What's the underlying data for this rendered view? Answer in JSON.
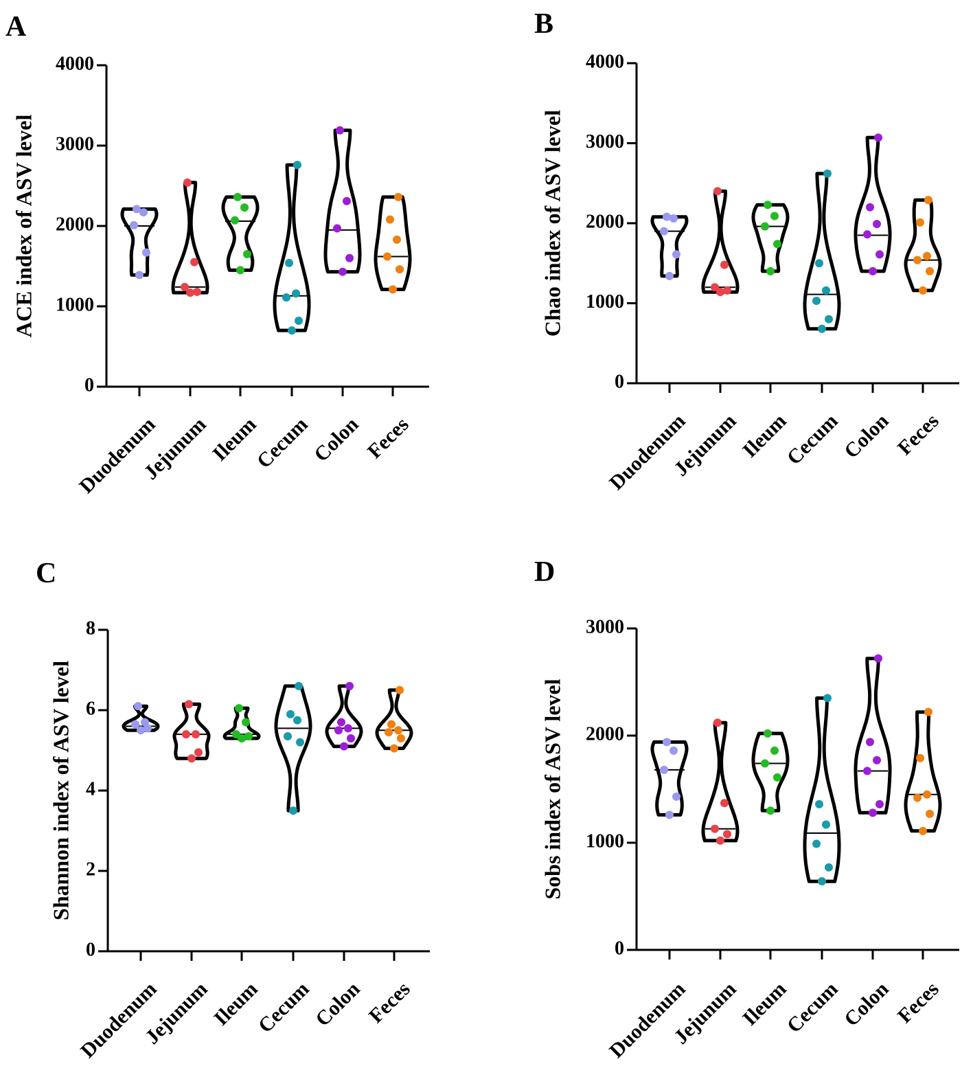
{
  "chart_data": [
    {
      "panel": "A",
      "type": "violin",
      "ylabel": "ACE index of ASV level",
      "ylim": [
        0,
        4000
      ],
      "yticks": [
        0,
        1000,
        2000,
        3000,
        4000
      ],
      "categories": [
        "Duodenum",
        "Jejunum",
        "Ileum",
        "Cecum",
        "Colon",
        "Feces"
      ],
      "series": [
        {
          "name": "Duodenum",
          "color": "#9999ee",
          "median": 2000,
          "values": [
            1390,
            1670,
            2010,
            2170,
            2210
          ]
        },
        {
          "name": "Jejunum",
          "color": "#e8424a",
          "median": 1240,
          "values": [
            1170,
            1180,
            1240,
            1550,
            2540
          ]
        },
        {
          "name": "Ileum",
          "color": "#22bb22",
          "median": 2060,
          "values": [
            1450,
            1650,
            2070,
            2230,
            2360
          ]
        },
        {
          "name": "Cecum",
          "color": "#1a9aaa",
          "median": 1130,
          "values": [
            700,
            820,
            1110,
            1160,
            1540,
            2760
          ]
        },
        {
          "name": "Colon",
          "color": "#9b1fd6",
          "median": 1950,
          "values": [
            1430,
            1600,
            1970,
            2310,
            3190
          ]
        },
        {
          "name": "Feces",
          "color": "#f08010",
          "median": 1620,
          "values": [
            1210,
            1460,
            1620,
            1830,
            2080,
            2360
          ]
        }
      ]
    },
    {
      "panel": "B",
      "type": "violin",
      "ylabel": "Chao index of ASV level",
      "ylim": [
        0,
        4000
      ],
      "yticks": [
        0,
        1000,
        2000,
        3000,
        4000
      ],
      "categories": [
        "Duodenum",
        "Jejunum",
        "Ileum",
        "Cecum",
        "Colon",
        "Feces"
      ],
      "series": [
        {
          "name": "Duodenum",
          "color": "#9999ee",
          "median": 1900,
          "values": [
            1340,
            1610,
            1900,
            2060,
            2080
          ]
        },
        {
          "name": "Jejunum",
          "color": "#e8424a",
          "median": 1200,
          "values": [
            1140,
            1160,
            1200,
            1480,
            2400
          ]
        },
        {
          "name": "Ileum",
          "color": "#22bb22",
          "median": 1960,
          "values": [
            1400,
            1740,
            1960,
            2090,
            2230
          ]
        },
        {
          "name": "Cecum",
          "color": "#1a9aaa",
          "median": 1110,
          "values": [
            680,
            800,
            1030,
            1160,
            1500,
            2620
          ]
        },
        {
          "name": "Colon",
          "color": "#9b1fd6",
          "median": 1850,
          "values": [
            1400,
            1610,
            1860,
            1990,
            2200,
            3070
          ]
        },
        {
          "name": "Feces",
          "color": "#f08010",
          "median": 1540,
          "values": [
            1160,
            1400,
            1540,
            1590,
            2010,
            2290
          ]
        }
      ]
    },
    {
      "panel": "C",
      "type": "violin",
      "ylabel": "Shannon index of ASV level",
      "ylim": [
        0,
        8
      ],
      "yticks": [
        0,
        2,
        4,
        6,
        8
      ],
      "categories": [
        "Duodenum",
        "Jejunum",
        "Ileum",
        "Cecum",
        "Colon",
        "Feces"
      ],
      "series": [
        {
          "name": "Duodenum",
          "color": "#9999ee",
          "median": 5.6,
          "values": [
            5.5,
            5.55,
            5.65,
            5.7,
            6.1
          ]
        },
        {
          "name": "Jejunum",
          "color": "#e8424a",
          "median": 5.4,
          "values": [
            4.8,
            4.95,
            5.4,
            5.4,
            6.15
          ]
        },
        {
          "name": "Ileum",
          "color": "#22bb22",
          "median": 5.4,
          "values": [
            5.3,
            5.35,
            5.4,
            5.7,
            6.05
          ]
        },
        {
          "name": "Cecum",
          "color": "#1a9aaa",
          "median": 5.55,
          "values": [
            3.5,
            5.2,
            5.35,
            5.75,
            5.9,
            6.6
          ]
        },
        {
          "name": "Colon",
          "color": "#9b1fd6",
          "median": 5.55,
          "values": [
            5.1,
            5.3,
            5.5,
            5.55,
            5.7,
            6.6
          ]
        },
        {
          "name": "Feces",
          "color": "#f08010",
          "median": 5.5,
          "values": [
            5.05,
            5.3,
            5.45,
            5.5,
            5.65,
            6.5
          ]
        }
      ]
    },
    {
      "panel": "D",
      "type": "violin",
      "ylabel": "Sobs index of ASV level",
      "ylim": [
        0,
        3000
      ],
      "yticks": [
        0,
        1000,
        2000,
        3000
      ],
      "categories": [
        "Duodenum",
        "Jejunum",
        "Ileum",
        "Cecum",
        "Colon",
        "Feces"
      ],
      "series": [
        {
          "name": "Duodenum",
          "color": "#9999ee",
          "median": 1680,
          "values": [
            1260,
            1430,
            1680,
            1860,
            1940
          ]
        },
        {
          "name": "Jejunum",
          "color": "#e8424a",
          "median": 1130,
          "values": [
            1020,
            1080,
            1130,
            1370,
            2120
          ]
        },
        {
          "name": "Ileum",
          "color": "#22bb22",
          "median": 1740,
          "values": [
            1300,
            1610,
            1740,
            1860,
            2020
          ]
        },
        {
          "name": "Cecum",
          "color": "#1a9aaa",
          "median": 1090,
          "values": [
            640,
            770,
            990,
            1170,
            1360,
            2350
          ]
        },
        {
          "name": "Colon",
          "color": "#9b1fd6",
          "median": 1670,
          "values": [
            1280,
            1360,
            1670,
            1770,
            1940,
            2720
          ]
        },
        {
          "name": "Feces",
          "color": "#f08010",
          "median": 1450,
          "values": [
            1110,
            1270,
            1420,
            1450,
            1790,
            2220
          ]
        }
      ]
    }
  ]
}
